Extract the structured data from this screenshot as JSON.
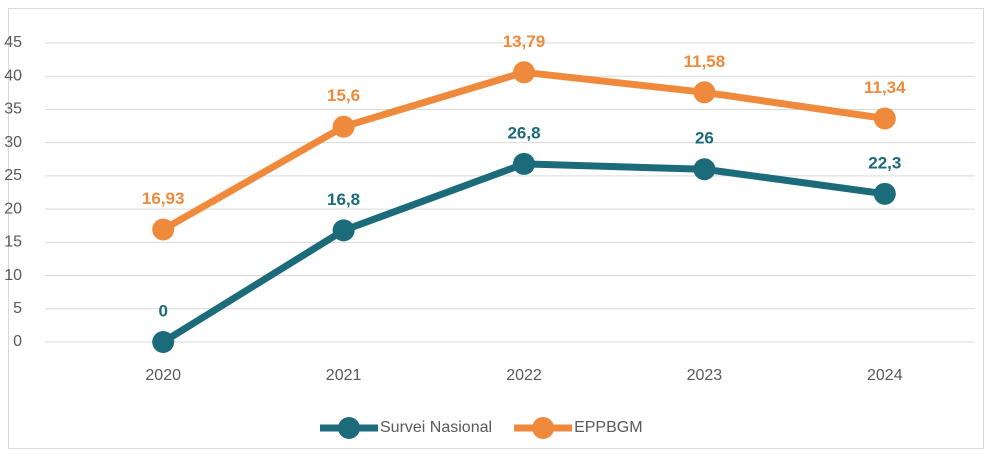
{
  "chart_data": {
    "type": "line",
    "stacked": true,
    "categories": [
      "2020",
      "2021",
      "2022",
      "2023",
      "2024"
    ],
    "series": [
      {
        "name": "Survei Nasional",
        "color": "#1b6b7b",
        "values": [
          0,
          16.8,
          26.8,
          26,
          22.3
        ],
        "value_labels": [
          "0",
          "16,8",
          "26,8",
          "26",
          "22,3"
        ]
      },
      {
        "name": "EPPBGM",
        "color": "#ef8a3c",
        "values": [
          16.93,
          15.6,
          13.79,
          11.58,
          11.34
        ],
        "value_labels": [
          "16,93",
          "15,6",
          "13,79",
          "11,58",
          "11,34"
        ]
      }
    ],
    "ylim": [
      0,
      45
    ],
    "yticks": [
      0,
      5,
      10,
      15,
      20,
      25,
      30,
      35,
      40,
      45
    ],
    "grid": true,
    "legend": "bottom"
  }
}
